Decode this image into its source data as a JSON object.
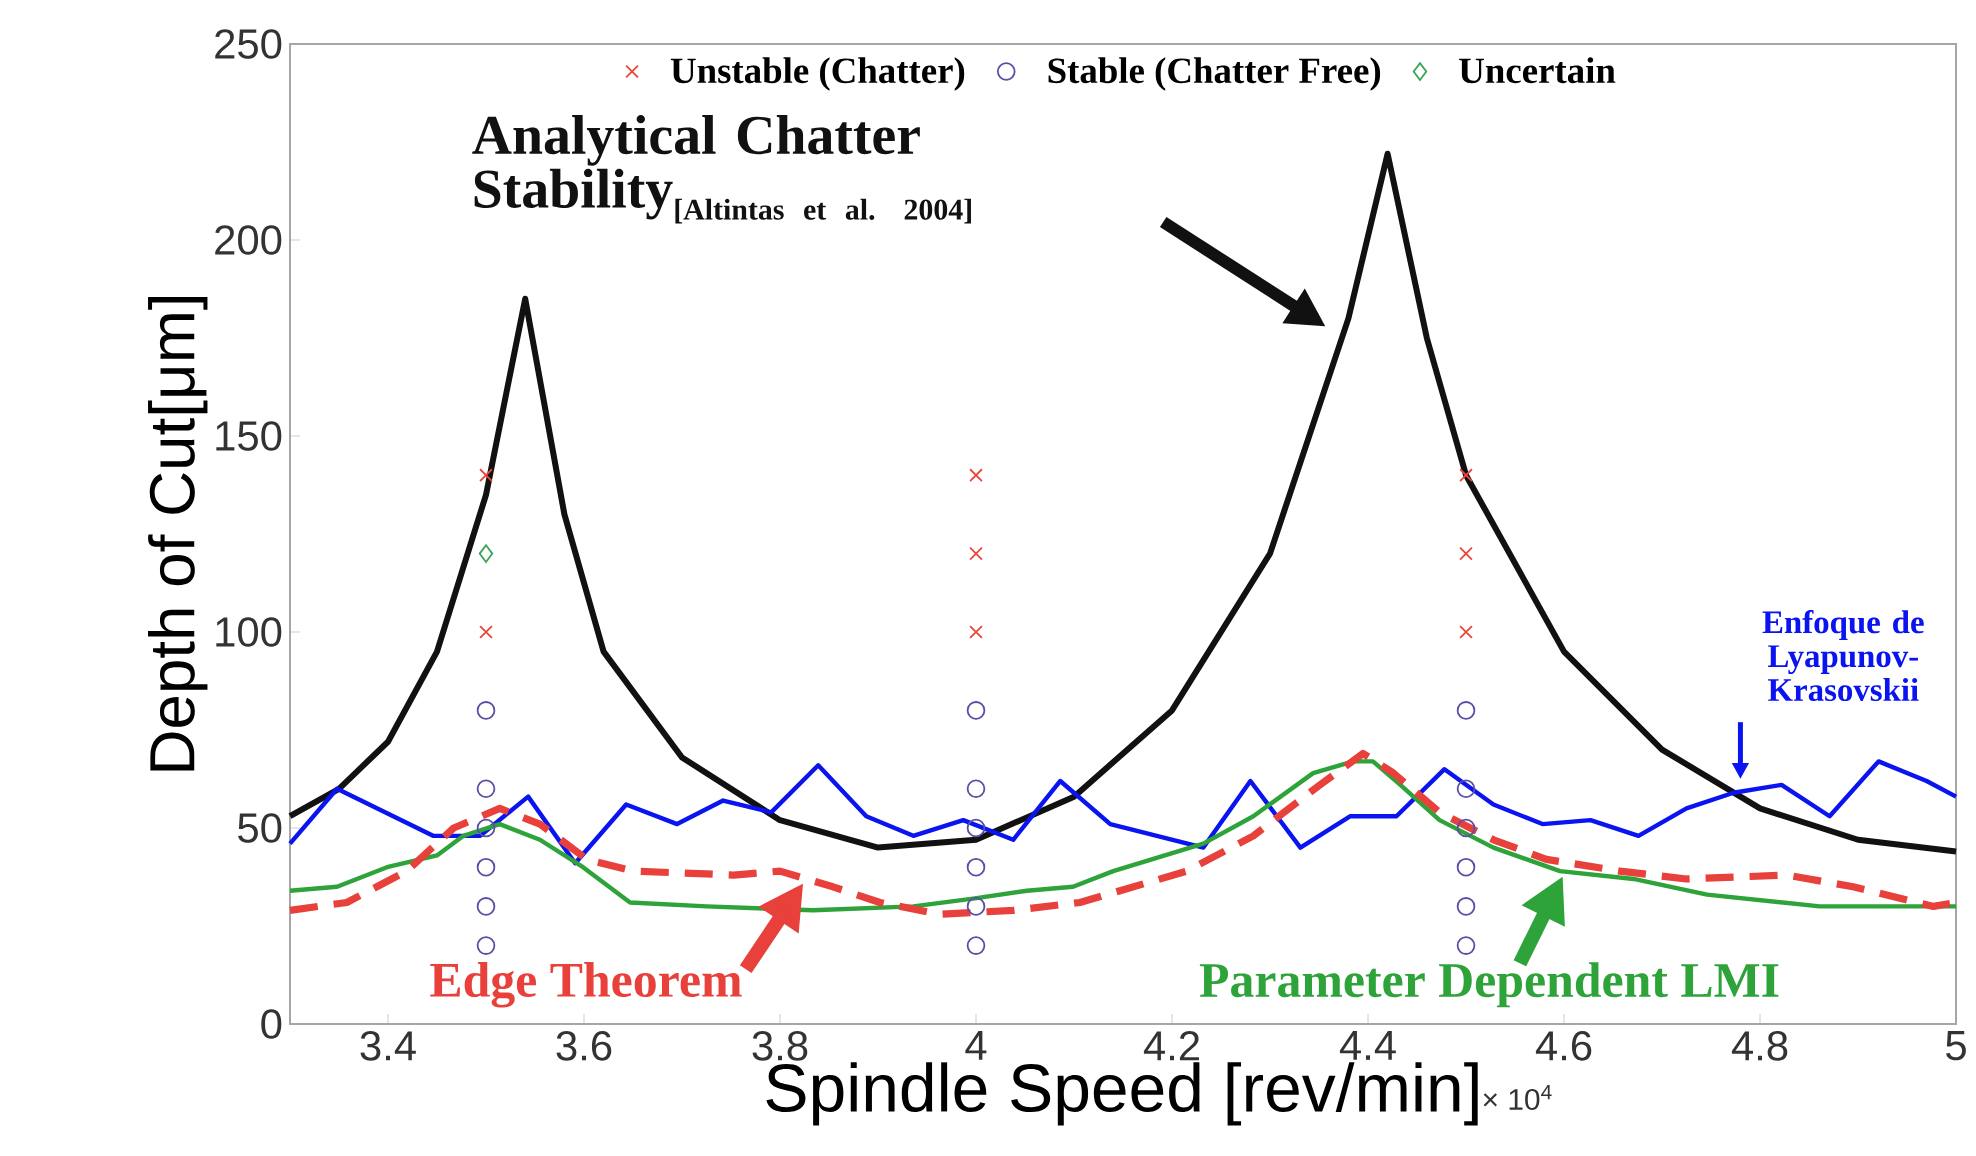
{
  "chart_data": {
    "type": "line",
    "xlabel": "Spindle Speed [rev/min]",
    "ylabel": "Depth of Cut[μm]",
    "annotations": [
      "× 10$^{4}$",
      "[Altintas et al. 2004]"
    ],
    "xlim": [
      3.3,
      5
    ],
    "xticks": [
      3.4,
      3.6,
      3.8,
      4,
      4.2,
      4.4,
      4.6,
      4.8,
      5
    ],
    "ylim": [
      0,
      250
    ],
    "yticks": [
      0,
      50,
      100,
      150,
      200,
      250
    ],
    "grid": false,
    "legend": "top",
    "series": [
      {
        "name": "Unstable (Chatter)",
        "type": "scatter",
        "marker": "cross",
        "color": "#e8473c",
        "x": [
          3.5,
          3.5,
          4,
          4,
          4,
          4.5,
          4.5,
          4.5
        ],
        "values": [
          140,
          100,
          140,
          120,
          100,
          140,
          120,
          100
        ]
      },
      {
        "name": "Stable (Chatter Free)",
        "type": "scatter",
        "marker": "circle",
        "color": "#5a4fa6",
        "x": [
          3.5,
          3.5,
          3.5,
          3.5,
          3.5,
          3.5,
          4,
          4,
          4,
          4,
          4,
          4,
          4.5,
          4.5,
          4.5,
          4.5,
          4.5,
          4.5
        ],
        "values": [
          80,
          60,
          50,
          40,
          30,
          20,
          80,
          60,
          50,
          40,
          30,
          20,
          80,
          60,
          50,
          40,
          30,
          20
        ]
      },
      {
        "name": "Uncertain",
        "type": "scatter",
        "marker": "diamond",
        "color": "#3aa655",
        "x": [
          3.5
        ],
        "values": [
          120
        ]
      },
      {
        "name": "Analytical Chatter Stability",
        "type": "line",
        "color": "#111111",
        "line_style": "solid",
        "x": [
          3.3,
          3.35,
          3.4,
          3.45,
          3.5,
          3.54,
          3.58,
          3.62,
          3.7,
          3.8,
          3.9,
          4.0,
          4.1,
          4.2,
          4.3,
          4.38,
          4.42,
          4.46,
          4.5,
          4.6,
          4.7,
          4.8,
          4.9,
          5.0
        ],
        "values": [
          53,
          60,
          72,
          95,
          135,
          185,
          130,
          95,
          68,
          52,
          45,
          47,
          58,
          80,
          120,
          180,
          222,
          175,
          140,
          95,
          70,
          55,
          47,
          44
        ]
      },
      {
        "name": "Enfoque de Lyapunov-Krasovskii",
        "type": "line",
        "color": "#0a14f0",
        "line_style": "solid",
        "x": [
          3.3,
          3.348,
          3.446,
          3.494,
          3.543,
          3.591,
          3.643,
          3.695,
          3.742,
          3.791,
          3.839,
          3.888,
          3.936,
          3.987,
          4.038,
          4.086,
          4.137,
          4.232,
          4.28,
          4.331,
          4.382,
          4.429,
          4.478,
          4.528,
          4.578,
          4.627,
          4.676,
          4.725,
          4.773,
          4.822,
          4.871,
          4.921,
          4.97,
          5.0
        ],
        "values": [
          46,
          60,
          48,
          48,
          58,
          41,
          56,
          51,
          57,
          54,
          66,
          53,
          48,
          52,
          47,
          62,
          51,
          45,
          62,
          45,
          53,
          53,
          65,
          56,
          51,
          52,
          48,
          55,
          59,
          61,
          53,
          67,
          62,
          58
        ]
      },
      {
        "name": "Parameter Dependent LMI",
        "type": "line",
        "color": "#2ea33a",
        "line_style": "solid",
        "x": [
          3.3,
          3.348,
          3.399,
          3.45,
          3.477,
          3.514,
          3.555,
          3.599,
          3.647,
          3.725,
          3.834,
          3.936,
          3.997,
          4.052,
          4.099,
          4.14,
          4.232,
          4.283,
          4.344,
          4.385,
          4.405,
          4.433,
          4.473,
          4.528,
          4.596,
          4.671,
          4.746,
          4.861,
          4.95,
          5.0
        ],
        "values": [
          34,
          35,
          40,
          43,
          48,
          51,
          47,
          40,
          31,
          30,
          29,
          30,
          32,
          34,
          35,
          39,
          46,
          53,
          64,
          67,
          67,
          61,
          52,
          45,
          39,
          37,
          33,
          30,
          30,
          30
        ]
      },
      {
        "name": "Edge Theorem",
        "type": "line",
        "color": "#e8403a",
        "line_style": "dashed",
        "x": [
          3.3,
          3.358,
          3.419,
          3.467,
          3.514,
          3.555,
          3.603,
          3.65,
          3.753,
          3.8,
          3.854,
          3.902,
          3.963,
          4.038,
          4.106,
          4.147,
          4.215,
          4.283,
          4.351,
          4.395,
          4.426,
          4.473,
          4.528,
          4.582,
          4.657,
          4.725,
          4.827,
          4.895,
          4.977,
          5.0
        ],
        "values": [
          29,
          31,
          39,
          50,
          55,
          51,
          42,
          39,
          38,
          39,
          35,
          31,
          28,
          29,
          31,
          34,
          39,
          48,
          61,
          69,
          64,
          54,
          47,
          42,
          39,
          37,
          38,
          35,
          30,
          31
        ]
      }
    ]
  }
}
